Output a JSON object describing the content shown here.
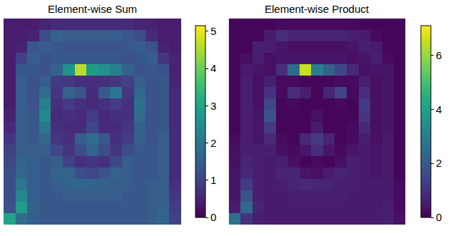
{
  "chart_data": [
    {
      "type": "heatmap",
      "title": "Element-wise Sum",
      "color": "Viridis",
      "tick_labels": false,
      "colorbar_range": [
        0,
        5.15
      ],
      "colorbar_ticks": [
        0,
        1,
        2,
        3,
        4,
        5
      ],
      "cells": [
        [
          0.4,
          0.4,
          0.4,
          0.5,
          0.6,
          0.6,
          0.6,
          0.6,
          0.6,
          0.6,
          0.6,
          0.5,
          0.5,
          0.4,
          0.4
        ],
        [
          0.4,
          0.4,
          0.5,
          1.2,
          1.6,
          1.5,
          1.5,
          1.5,
          1.5,
          1.5,
          1.4,
          1.2,
          0.6,
          0.4,
          0.4
        ],
        [
          0.4,
          0.5,
          1.4,
          1.5,
          1.4,
          1.3,
          1.3,
          1.3,
          1.3,
          1.3,
          1.4,
          1.5,
          1.3,
          0.5,
          0.4
        ],
        [
          0.4,
          1.0,
          1.5,
          1.3,
          1.4,
          1.4,
          1.4,
          1.4,
          1.4,
          1.4,
          1.3,
          1.4,
          1.5,
          0.8,
          0.5
        ],
        [
          0.4,
          1.4,
          1.4,
          1.3,
          1.6,
          2.6,
          4.6,
          2.8,
          2.6,
          2.2,
          1.6,
          1.3,
          1.4,
          1.3,
          0.5
        ],
        [
          0.4,
          1.5,
          1.3,
          1.5,
          0.9,
          0.8,
          0.7,
          0.7,
          0.7,
          0.8,
          1.0,
          1.5,
          1.3,
          1.4,
          0.5
        ],
        [
          0.4,
          1.5,
          1.3,
          1.8,
          0.8,
          1.6,
          1.3,
          0.6,
          1.4,
          2.0,
          0.8,
          1.7,
          1.3,
          1.4,
          0.6
        ],
        [
          0.4,
          1.5,
          1.3,
          2.2,
          0.7,
          0.9,
          0.7,
          0.6,
          0.7,
          0.9,
          0.7,
          1.9,
          1.3,
          1.4,
          0.6
        ],
        [
          0.5,
          1.5,
          1.4,
          2.4,
          0.6,
          0.7,
          0.6,
          0.9,
          0.6,
          0.7,
          0.7,
          1.8,
          1.3,
          1.4,
          0.6
        ],
        [
          0.6,
          1.5,
          1.4,
          2.0,
          0.7,
          0.6,
          0.6,
          1.1,
          0.6,
          0.6,
          0.8,
          1.6,
          1.3,
          1.4,
          0.6
        ],
        [
          0.8,
          1.5,
          1.4,
          1.7,
          0.8,
          0.7,
          1.5,
          1.8,
          1.4,
          0.7,
          0.9,
          1.5,
          1.3,
          1.5,
          0.6
        ],
        [
          1.0,
          1.5,
          1.5,
          1.5,
          1.1,
          0.8,
          1.2,
          1.6,
          1.2,
          0.8,
          1.2,
          1.4,
          1.4,
          1.5,
          0.6
        ],
        [
          1.1,
          1.6,
          1.5,
          1.4,
          1.5,
          1.0,
          0.7,
          0.8,
          0.7,
          1.1,
          1.5,
          1.4,
          1.4,
          1.5,
          0.6
        ],
        [
          1.2,
          1.7,
          1.5,
          1.4,
          1.6,
          1.6,
          1.2,
          1.1,
          1.3,
          1.6,
          1.5,
          1.4,
          1.4,
          1.5,
          0.6
        ],
        [
          1.2,
          2.0,
          1.5,
          1.4,
          1.5,
          1.6,
          1.7,
          1.6,
          1.6,
          1.5,
          1.5,
          1.4,
          1.5,
          1.5,
          0.7
        ],
        [
          1.2,
          2.4,
          1.5,
          1.4,
          1.4,
          1.5,
          1.5,
          1.5,
          1.5,
          1.5,
          1.4,
          1.4,
          1.5,
          1.5,
          0.8
        ],
        [
          1.3,
          2.8,
          1.6,
          1.4,
          1.4,
          1.4,
          1.4,
          1.4,
          1.4,
          1.4,
          1.4,
          1.4,
          1.5,
          1.6,
          0.9
        ],
        [
          3.0,
          1.8,
          1.5,
          1.4,
          1.4,
          1.4,
          1.4,
          1.4,
          1.4,
          1.4,
          1.4,
          1.4,
          1.5,
          1.6,
          1.0
        ]
      ]
    },
    {
      "type": "heatmap",
      "title": "Element-wise Product",
      "color": "Viridis",
      "tick_labels": false,
      "colorbar_range": [
        0,
        7.1
      ],
      "colorbar_ticks": [
        0,
        2,
        4,
        6
      ],
      "cells": [
        [
          0.1,
          0.1,
          0.1,
          0.1,
          0.2,
          0.2,
          0.2,
          0.2,
          0.2,
          0.2,
          0.2,
          0.1,
          0.1,
          0.1,
          0.1
        ],
        [
          0.1,
          0.1,
          0.1,
          0.5,
          0.9,
          0.7,
          0.7,
          0.7,
          0.7,
          0.7,
          0.6,
          0.5,
          0.2,
          0.1,
          0.1
        ],
        [
          0.1,
          0.1,
          0.6,
          0.6,
          0.4,
          0.3,
          0.3,
          0.3,
          0.3,
          0.3,
          0.4,
          0.6,
          0.5,
          0.1,
          0.1
        ],
        [
          0.1,
          0.3,
          0.6,
          0.3,
          0.4,
          0.4,
          0.4,
          0.4,
          0.4,
          0.4,
          0.3,
          0.4,
          0.6,
          0.2,
          0.1
        ],
        [
          0.1,
          0.5,
          0.4,
          0.3,
          0.9,
          2.4,
          6.5,
          3.0,
          2.2,
          1.5,
          0.8,
          0.3,
          0.4,
          0.4,
          0.1
        ],
        [
          0.1,
          0.6,
          0.3,
          0.6,
          0.2,
          0.2,
          0.1,
          0.1,
          0.1,
          0.2,
          0.2,
          0.6,
          0.3,
          0.4,
          0.1
        ],
        [
          0.1,
          0.6,
          0.3,
          1.0,
          0.2,
          0.9,
          0.6,
          0.1,
          0.7,
          1.4,
          0.2,
          0.9,
          0.3,
          0.4,
          0.1
        ],
        [
          0.1,
          0.6,
          0.3,
          1.5,
          0.1,
          0.2,
          0.1,
          0.1,
          0.1,
          0.2,
          0.1,
          1.2,
          0.3,
          0.4,
          0.1
        ],
        [
          0.1,
          0.6,
          0.4,
          1.8,
          0.1,
          0.1,
          0.1,
          0.3,
          0.1,
          0.1,
          0.1,
          1.1,
          0.3,
          0.4,
          0.1
        ],
        [
          0.1,
          0.6,
          0.4,
          1.2,
          0.1,
          0.1,
          0.1,
          0.5,
          0.1,
          0.1,
          0.2,
          0.8,
          0.3,
          0.4,
          0.1
        ],
        [
          0.2,
          0.6,
          0.4,
          0.8,
          0.2,
          0.1,
          0.8,
          1.2,
          0.7,
          0.1,
          0.2,
          0.6,
          0.3,
          0.5,
          0.1
        ],
        [
          0.3,
          0.6,
          0.6,
          0.6,
          0.3,
          0.2,
          0.4,
          0.9,
          0.4,
          0.2,
          0.4,
          0.5,
          0.4,
          0.5,
          0.1
        ],
        [
          0.3,
          0.7,
          0.6,
          0.5,
          0.6,
          0.3,
          0.1,
          0.2,
          0.1,
          0.3,
          0.6,
          0.5,
          0.4,
          0.5,
          0.1
        ],
        [
          0.4,
          0.8,
          0.6,
          0.5,
          0.7,
          0.7,
          0.4,
          0.3,
          0.5,
          0.7,
          0.6,
          0.5,
          0.4,
          0.5,
          0.1
        ],
        [
          0.4,
          1.2,
          0.6,
          0.5,
          0.6,
          0.7,
          0.8,
          0.7,
          0.7,
          0.6,
          0.6,
          0.5,
          0.5,
          0.5,
          0.2
        ],
        [
          0.4,
          1.8,
          0.6,
          0.5,
          0.5,
          0.6,
          0.6,
          0.6,
          0.6,
          0.6,
          0.5,
          0.5,
          0.5,
          0.5,
          0.2
        ],
        [
          0.5,
          2.4,
          0.7,
          0.5,
          0.5,
          0.5,
          0.5,
          0.5,
          0.5,
          0.5,
          0.5,
          0.5,
          0.5,
          0.6,
          0.2
        ],
        [
          2.6,
          1.0,
          0.6,
          0.5,
          0.5,
          0.5,
          0.5,
          0.5,
          0.5,
          0.5,
          0.5,
          0.5,
          0.5,
          0.6,
          0.3
        ]
      ]
    }
  ]
}
